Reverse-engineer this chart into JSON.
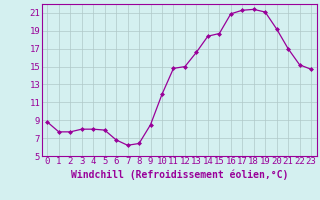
{
  "x": [
    0,
    1,
    2,
    3,
    4,
    5,
    6,
    7,
    8,
    9,
    10,
    11,
    12,
    13,
    14,
    15,
    16,
    17,
    18,
    19,
    20,
    21,
    22,
    23
  ],
  "y": [
    8.8,
    7.7,
    7.7,
    8.0,
    8.0,
    7.9,
    6.8,
    6.2,
    6.4,
    8.5,
    11.9,
    14.8,
    15.0,
    16.6,
    18.4,
    18.7,
    20.9,
    21.3,
    21.4,
    21.1,
    19.2,
    17.0,
    15.2,
    14.7
  ],
  "xlabel": "Windchill (Refroidissement éolien,°C)",
  "line_color": "#990099",
  "marker": "D",
  "marker_size": 2.0,
  "bg_color": "#d4f0f0",
  "grid_color": "#b0c8c8",
  "ylim": [
    5,
    22
  ],
  "xlim": [
    -0.5,
    23.5
  ],
  "yticks": [
    5,
    7,
    9,
    11,
    13,
    15,
    17,
    19,
    21
  ],
  "xticks": [
    0,
    1,
    2,
    3,
    4,
    5,
    6,
    7,
    8,
    9,
    10,
    11,
    12,
    13,
    14,
    15,
    16,
    17,
    18,
    19,
    20,
    21,
    22,
    23
  ],
  "tick_fontsize": 6.5,
  "xlabel_fontsize": 7.0
}
